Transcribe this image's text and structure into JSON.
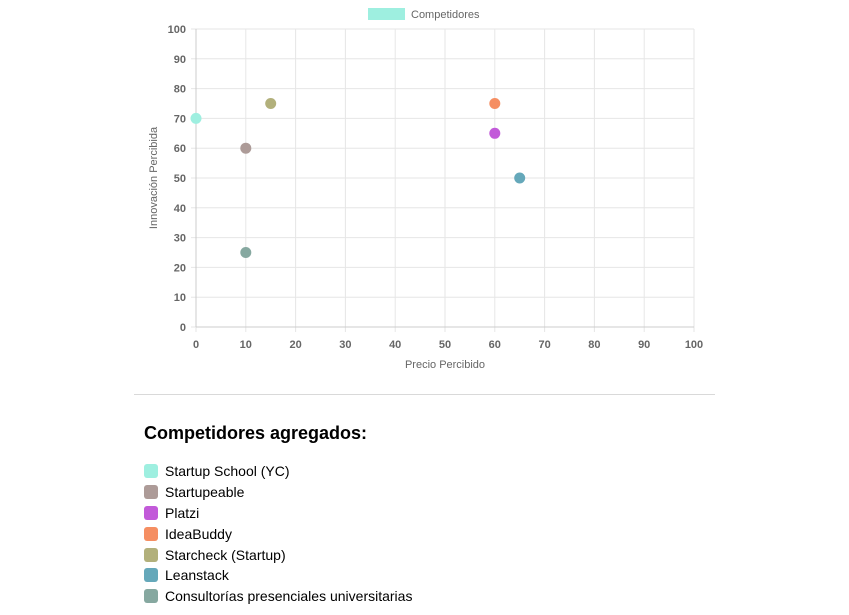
{
  "chart_data": {
    "type": "scatter",
    "title": "",
    "xlabel": "Precio Percibido",
    "ylabel": "Innovación Percibida",
    "xlim": [
      0,
      100
    ],
    "ylim": [
      0,
      100
    ],
    "x_ticks": [
      0,
      10,
      20,
      30,
      40,
      50,
      60,
      70,
      80,
      90,
      100
    ],
    "y_ticks": [
      0,
      10,
      20,
      30,
      40,
      50,
      60,
      70,
      80,
      90,
      100
    ],
    "grid": true,
    "legend": {
      "label": "Competidores",
      "position": "top",
      "color": "#9eefe0"
    },
    "points": [
      {
        "name": "Startup School (YC)",
        "x": 0,
        "y": 70,
        "color": "#9eefe0"
      },
      {
        "name": "Startupeable",
        "x": 10,
        "y": 60,
        "color": "#ad9b98"
      },
      {
        "name": "Platzi",
        "x": 60,
        "y": 65,
        "color": "#c25ad9"
      },
      {
        "name": "IdeaBuddy",
        "x": 60,
        "y": 75,
        "color": "#f58e62"
      },
      {
        "name": "Starcheck (Startup)",
        "x": 15,
        "y": 75,
        "color": "#b2b07b"
      },
      {
        "name": "Leanstack",
        "x": 65,
        "y": 50,
        "color": "#65a8ba"
      },
      {
        "name": "Consultorías presenciales universitarias",
        "x": 10,
        "y": 25,
        "color": "#86a8a0"
      }
    ]
  },
  "list": {
    "title": "Competidores agregados:",
    "items": [
      {
        "label": "Startup School (YC)",
        "color": "#9eefe0"
      },
      {
        "label": "Startupeable",
        "color": "#ad9b98"
      },
      {
        "label": "Platzi",
        "color": "#c25ad9"
      },
      {
        "label": "IdeaBuddy",
        "color": "#f58e62"
      },
      {
        "label": "Starcheck (Startup)",
        "color": "#b2b07b"
      },
      {
        "label": "Leanstack",
        "color": "#65a8ba"
      },
      {
        "label": "Consultorías presenciales universitarias",
        "color": "#86a8a0"
      }
    ]
  }
}
